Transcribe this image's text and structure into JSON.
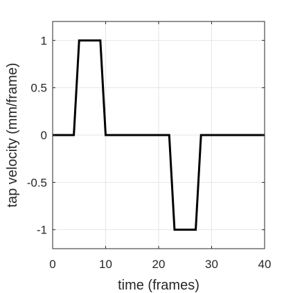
{
  "chart_data": {
    "type": "line",
    "title": "",
    "xlabel": "time (frames)",
    "ylabel": "tap velocity (mm/frame)",
    "xlim": [
      0,
      40
    ],
    "ylim": [
      -1.2,
      1.2
    ],
    "x_ticks": [
      0,
      10,
      20,
      30,
      40
    ],
    "x_tick_labels": [
      "0",
      "10",
      "20",
      "30",
      "40"
    ],
    "y_ticks": [
      1,
      0.5,
      0,
      -0.5,
      -1
    ],
    "y_tick_labels": [
      "1",
      "0.5",
      "0",
      "-0.5",
      "-1"
    ],
    "grid": true,
    "line_color": "#000000",
    "series": [
      {
        "x": [
          0,
          4,
          5,
          9,
          10,
          22,
          23,
          27,
          28,
          40
        ],
        "y": [
          0,
          0,
          1,
          1,
          0,
          0,
          -1,
          -1,
          0,
          0
        ]
      }
    ]
  }
}
